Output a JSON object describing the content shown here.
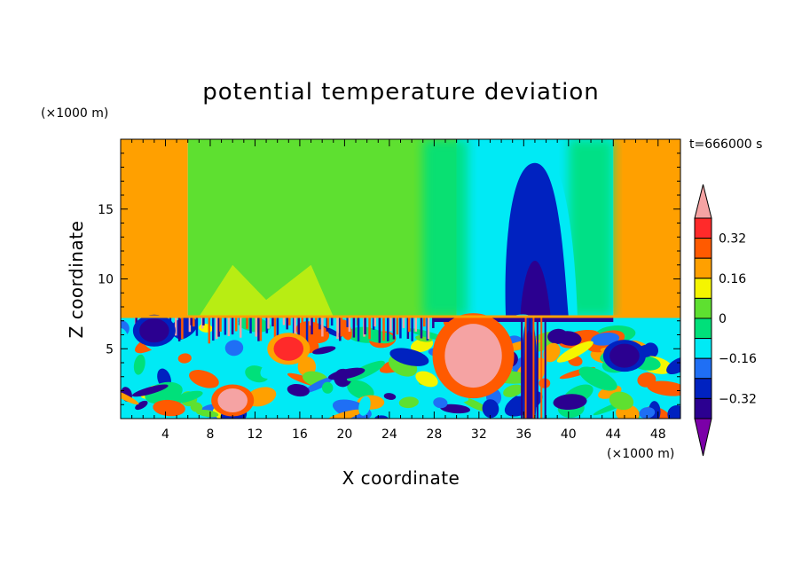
{
  "chart_data": {
    "type": "heatmap",
    "title": "potential temperature deviation",
    "xlabel": "X coordinate",
    "ylabel": "Z coordinate",
    "x_unit": "(×1000 m)",
    "y_unit": "(×1000 m)",
    "time_label": "t=666000 s",
    "xlim": [
      0,
      50
    ],
    "ylim": [
      0,
      20
    ],
    "x_ticks": [
      4,
      8,
      12,
      16,
      20,
      24,
      28,
      32,
      36,
      40,
      44,
      48
    ],
    "y_ticks": [
      5,
      10,
      15
    ],
    "colorbar": {
      "levels": [
        -0.4,
        -0.32,
        -0.24,
        -0.16,
        -0.08,
        0,
        0.08,
        0.16,
        0.24,
        0.32,
        0.4
      ],
      "labels": [
        "0.32",
        "0.16",
        "0",
        "−0.16",
        "−0.32"
      ],
      "label_values": [
        0.32,
        0.16,
        0,
        -0.16,
        -0.32
      ],
      "colors": [
        "#7b00a8",
        "#2b0090",
        "#0022c0",
        "#1f6ff5",
        "#00eaf5",
        "#00e07a",
        "#5ee030",
        "#f5f500",
        "#ffa000",
        "#ff5a00",
        "#ff2a2a",
        "#f5a3a3"
      ],
      "extend": "both"
    },
    "upper_layer": {
      "columns": [
        {
          "x": [
            0,
            6
          ],
          "value": 0.16
        },
        {
          "x": [
            6,
            30
          ],
          "value": 0.05
        },
        {
          "x": [
            30,
            44
          ],
          "value": -0.1
        },
        {
          "x": [
            44,
            50
          ],
          "value": 0.16
        }
      ],
      "plume_core": {
        "x": 37,
        "z": [
          7.3,
          18.3
        ],
        "value": -0.28
      },
      "plume_center": {
        "x": 37,
        "z": [
          7.3,
          11.3
        ],
        "value": -0.36
      }
    },
    "boundary_z": 7.3,
    "lower_layer_features": [
      {
        "x": 31.5,
        "z": 4.5,
        "value": 0.4
      },
      {
        "x": 36.5,
        "z": 3.0,
        "value": -0.4
      },
      {
        "x": 10,
        "z": 1.3,
        "value": 0.4
      },
      {
        "x": 3,
        "z": 6.3,
        "value": -0.4
      },
      {
        "x": 45,
        "z": 4.5,
        "value": -0.4
      },
      {
        "x": 15,
        "z": 5.0,
        "value": 0.32
      }
    ]
  }
}
